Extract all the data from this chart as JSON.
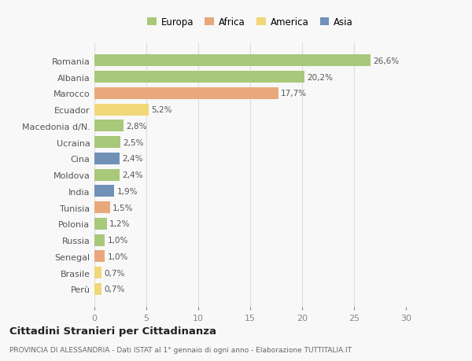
{
  "countries": [
    "Romania",
    "Albania",
    "Marocco",
    "Ecuador",
    "Macedonia d/N.",
    "Ucraina",
    "Cina",
    "Moldova",
    "India",
    "Tunisia",
    "Polonia",
    "Russia",
    "Senegal",
    "Brasile",
    "Perù"
  ],
  "values": [
    26.6,
    20.2,
    17.7,
    5.2,
    2.8,
    2.5,
    2.4,
    2.4,
    1.9,
    1.5,
    1.2,
    1.0,
    1.0,
    0.7,
    0.7
  ],
  "labels": [
    "26,6%",
    "20,2%",
    "17,7%",
    "5,2%",
    "2,8%",
    "2,5%",
    "2,4%",
    "2,4%",
    "1,9%",
    "1,5%",
    "1,2%",
    "1,0%",
    "1,0%",
    "0,7%",
    "0,7%"
  ],
  "colors": [
    "#a8c87a",
    "#a8c87a",
    "#e8a87c",
    "#f0d878",
    "#a8c87a",
    "#a8c87a",
    "#7090b8",
    "#a8c87a",
    "#7090b8",
    "#e8a87c",
    "#a8c87a",
    "#a8c87a",
    "#e8a87c",
    "#f0d878",
    "#f0d878"
  ],
  "legend_labels": [
    "Europa",
    "Africa",
    "America",
    "Asia"
  ],
  "legend_colors": [
    "#a8c87a",
    "#e8a87c",
    "#f0d878",
    "#7090b8"
  ],
  "xlim": [
    0,
    30
  ],
  "xticks": [
    0,
    5,
    10,
    15,
    20,
    25,
    30
  ],
  "title1": "Cittadini Stranieri per Cittadinanza",
  "title2": "PROVINCIA DI ALESSANDRIA - Dati ISTAT al 1° gennaio di ogni anno - Elaborazione TUTTITALIA.IT",
  "background_color": "#f8f8f8",
  "grid_color": "#dddddd"
}
